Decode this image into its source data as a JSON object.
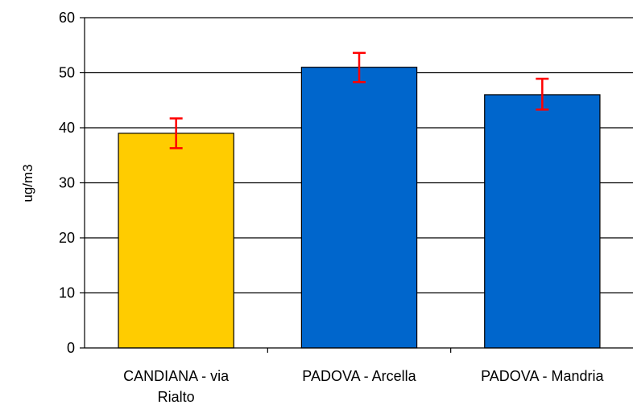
{
  "chart_data": {
    "type": "bar",
    "title": "",
    "xlabel": "",
    "ylabel": "ug/m3",
    "ylim": [
      0,
      60
    ],
    "yticks": [
      0,
      10,
      20,
      30,
      40,
      50,
      60
    ],
    "grid": true,
    "legend": "none",
    "categories": [
      [
        "CANDIANA - via",
        "Rialto"
      ],
      [
        "PADOVA - Arcella"
      ],
      [
        "PADOVA - Mandria"
      ]
    ],
    "values": [
      39,
      51,
      46
    ],
    "error_low": [
      36.3,
      48.3,
      43.3
    ],
    "error_high": [
      41.7,
      53.6,
      48.9
    ],
    "bar_colors": [
      "#FFCC00",
      "#0066CC",
      "#0066CC"
    ],
    "error_color": "#FF0000"
  }
}
